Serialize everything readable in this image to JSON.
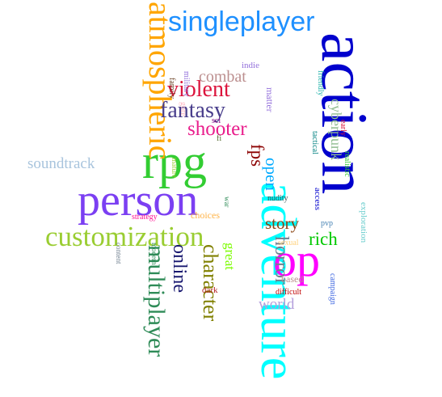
{
  "words": [
    {
      "text": "action",
      "color": "#0000cd"
    },
    {
      "text": "adventure",
      "color": "#00ffff"
    },
    {
      "text": "rpg",
      "color": "#32cd32"
    },
    {
      "text": "person",
      "color": "#7b3ff2"
    },
    {
      "text": "singleplayer",
      "color": "#1e90ff"
    },
    {
      "text": "atmospheric",
      "color": "#ffa500"
    },
    {
      "text": "op",
      "color": "#ff00ff"
    },
    {
      "text": "customization",
      "color": "#9acd32"
    },
    {
      "text": "multiplayer",
      "color": "#2e8b57"
    },
    {
      "text": "character",
      "color": "#808000"
    },
    {
      "text": "online",
      "color": "#191970"
    },
    {
      "text": "horror",
      "color": "#708090"
    },
    {
      "text": "fantasy",
      "color": "#483d8b"
    },
    {
      "text": "violent",
      "color": "#dc143c"
    },
    {
      "text": "shooter",
      "color": "#e91e8c"
    },
    {
      "text": "combat",
      "color": "#bc8f8f"
    },
    {
      "text": "soundtrack",
      "color": "#a8c4dd"
    },
    {
      "text": "fps",
      "color": "#8b0000"
    },
    {
      "text": "open",
      "color": "#00aaff"
    },
    {
      "text": "story",
      "color": "#8b4513"
    },
    {
      "text": "rich",
      "color": "#00c800"
    },
    {
      "text": "world",
      "color": "#b39ddb"
    },
    {
      "text": "cyberpunk",
      "color": "#8fbc8f"
    },
    {
      "text": "great",
      "color": "#7cfc00"
    },
    {
      "text": "matter",
      "color": "#9370db"
    },
    {
      "text": "friendly",
      "color": "#20b2aa"
    },
    {
      "text": "indie",
      "color": "#9370db"
    },
    {
      "text": "military",
      "color": "#9370db"
    },
    {
      "text": "family",
      "color": "#6b4226"
    },
    {
      "text": "gore",
      "color": "#ffb6c1"
    },
    {
      "text": "sci",
      "color": "#800080"
    },
    {
      "text": "fi",
      "color": "#556b2f"
    },
    {
      "text": "mature",
      "color": "#9acd32"
    },
    {
      "text": "war",
      "color": "#2e8b57"
    },
    {
      "text": "strategy",
      "color": "#ff1493"
    },
    {
      "text": "choices",
      "color": "#ffb347"
    },
    {
      "text": "nudity",
      "color": "#2f4f4f"
    },
    {
      "text": "access",
      "color": "#0000cd"
    },
    {
      "text": "early",
      "color": "#dc143c"
    },
    {
      "text": "tactical",
      "color": "#008080"
    },
    {
      "text": "realistic",
      "color": "#32cd32"
    },
    {
      "text": "exploration",
      "color": "#66cccc"
    },
    {
      "text": "pvp",
      "color": "#4682b4"
    },
    {
      "text": "sexual",
      "color": "#ffd27f"
    },
    {
      "text": "based",
      "color": "#bc8f8f"
    },
    {
      "text": "difficult",
      "color": "#c00000"
    },
    {
      "text": "campaign",
      "color": "#4169e1"
    },
    {
      "text": "dark",
      "color": "#b22222"
    },
    {
      "text": "modern",
      "color": "#2e8b57"
    },
    {
      "text": "content",
      "color": "#708090"
    }
  ]
}
